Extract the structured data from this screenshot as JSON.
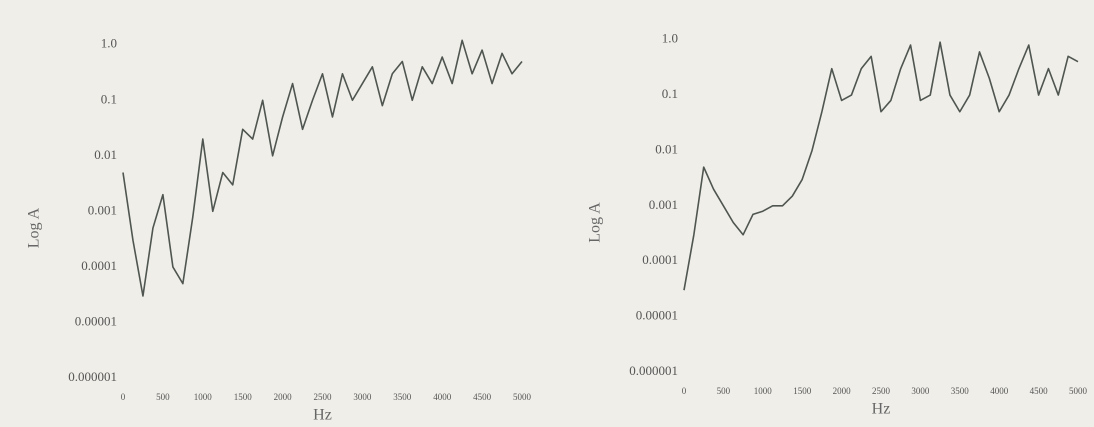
{
  "chart_data": [
    {
      "type": "line",
      "log_y": true,
      "x_label": "Hz",
      "y_label": "Log A",
      "xlim": [
        0,
        5000
      ],
      "xticks": [
        0,
        500,
        1000,
        1500,
        2000,
        2500,
        3000,
        3500,
        4000,
        4500,
        5000
      ],
      "ylim": [
        1e-06,
        2
      ],
      "yticks": [
        {
          "value": 1,
          "label": "1.0"
        },
        0.1,
        0.01,
        0.001,
        0.0001,
        1e-05,
        1e-06
      ],
      "x": [
        0,
        125,
        250,
        375,
        500,
        625,
        750,
        875,
        1000,
        1125,
        1250,
        1375,
        1500,
        1625,
        1750,
        1875,
        2000,
        2125,
        2250,
        2375,
        2500,
        2625,
        2750,
        2875,
        3000,
        3125,
        3250,
        3375,
        3500,
        3625,
        3750,
        3875,
        4000,
        4125,
        4250,
        4375,
        4500,
        4625,
        4750,
        4875,
        5000
      ],
      "series": [
        {
          "color": "#4f5550",
          "values": [
            0.005,
            0.0003,
            3e-05,
            0.0005,
            0.002,
            0.0001,
            5e-05,
            0.0008,
            0.02,
            0.001,
            0.005,
            0.003,
            0.03,
            0.02,
            0.1,
            0.01,
            0.05,
            0.2,
            0.03,
            0.1,
            0.3,
            0.05,
            0.3,
            0.1,
            0.2,
            0.4,
            0.08,
            0.3,
            0.5,
            0.1,
            0.4,
            0.2,
            0.6,
            0.2,
            1.2,
            0.3,
            0.8,
            0.2,
            0.7,
            0.3,
            0.5
          ]
        }
      ]
    },
    {
      "type": "line",
      "log_y": true,
      "x_label": "Hz",
      "y_label": "Log A",
      "xlim": [
        0,
        5000
      ],
      "xticks": [
        0,
        500,
        1000,
        1500,
        2000,
        2500,
        3000,
        3500,
        4000,
        4500,
        5000
      ],
      "ylim": [
        1e-06,
        2
      ],
      "yticks": [
        {
          "value": 1,
          "label": "1.0"
        },
        0.1,
        0.01,
        0.001,
        0.0001,
        1e-05,
        1e-06
      ],
      "x": [
        0,
        125,
        250,
        375,
        500,
        625,
        750,
        875,
        1000,
        1125,
        1250,
        1375,
        1500,
        1625,
        1750,
        1875,
        2000,
        2125,
        2250,
        2375,
        2500,
        2625,
        2750,
        2875,
        3000,
        3125,
        3250,
        3375,
        3500,
        3625,
        3750,
        3875,
        4000,
        4125,
        4250,
        4375,
        4500,
        4625,
        4750,
        4875,
        5000
      ],
      "series": [
        {
          "color": "#4f5550",
          "values": [
            3e-05,
            0.0003,
            0.005,
            0.002,
            0.001,
            0.0005,
            0.0003,
            0.0007,
            0.0008,
            0.001,
            0.001,
            0.0015,
            0.003,
            0.01,
            0.05,
            0.3,
            0.08,
            0.1,
            0.3,
            0.5,
            0.05,
            0.08,
            0.3,
            0.8,
            0.08,
            0.1,
            0.9,
            0.1,
            0.05,
            0.1,
            0.6,
            0.2,
            0.05,
            0.1,
            0.3,
            0.8,
            0.1,
            0.3,
            0.1,
            0.5,
            0.4
          ]
        }
      ]
    }
  ]
}
